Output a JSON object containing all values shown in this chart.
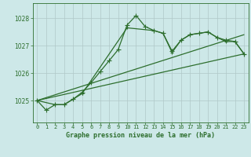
{
  "title": "Graphe pression niveau de la mer (hPa)",
  "bg_color": "#cde8e8",
  "grid_color": "#b0c8c8",
  "line_color": "#2d6e2d",
  "xlim": [
    -0.5,
    23.5
  ],
  "ylim": [
    1024.2,
    1028.55
  ],
  "yticks": [
    1025,
    1026,
    1027,
    1028
  ],
  "xticks": [
    0,
    1,
    2,
    3,
    4,
    5,
    6,
    7,
    8,
    9,
    10,
    11,
    12,
    13,
    14,
    15,
    16,
    17,
    18,
    19,
    20,
    21,
    22,
    23
  ],
  "series": [
    {
      "x": [
        0,
        1,
        2,
        3,
        4,
        5,
        6,
        7,
        8,
        9,
        10,
        11,
        12,
        13,
        14,
        15,
        16,
        17,
        18,
        19,
        20,
        21,
        22,
        23
      ],
      "y": [
        1025.0,
        1024.65,
        1024.85,
        1024.85,
        1025.05,
        1025.3,
        1025.65,
        1026.05,
        1026.45,
        1026.85,
        1027.75,
        1028.1,
        1027.7,
        1027.55,
        1027.45,
        1026.8,
        1027.2,
        1027.4,
        1027.45,
        1027.5,
        1027.3,
        1027.2,
        1027.15,
        1026.7
      ],
      "marker": "+",
      "markersize": 4,
      "linewidth": 0.9
    },
    {
      "x": [
        0,
        2,
        3,
        4,
        5,
        10,
        13,
        14,
        15,
        16,
        17,
        18,
        19,
        20,
        21,
        22,
        23
      ],
      "y": [
        1025.0,
        1024.85,
        1024.85,
        1025.05,
        1025.25,
        1027.65,
        1027.55,
        1027.45,
        1026.75,
        1027.2,
        1027.4,
        1027.45,
        1027.5,
        1027.3,
        1027.15,
        1027.15,
        1026.7
      ],
      "marker": "+",
      "markersize": 3,
      "linewidth": 0.9
    },
    {
      "x": [
        0,
        23
      ],
      "y": [
        1025.0,
        1026.7
      ],
      "marker": null,
      "markersize": 0,
      "linewidth": 0.9
    },
    {
      "x": [
        0,
        23
      ],
      "y": [
        1025.0,
        1027.4
      ],
      "marker": null,
      "markersize": 0,
      "linewidth": 0.9
    }
  ]
}
